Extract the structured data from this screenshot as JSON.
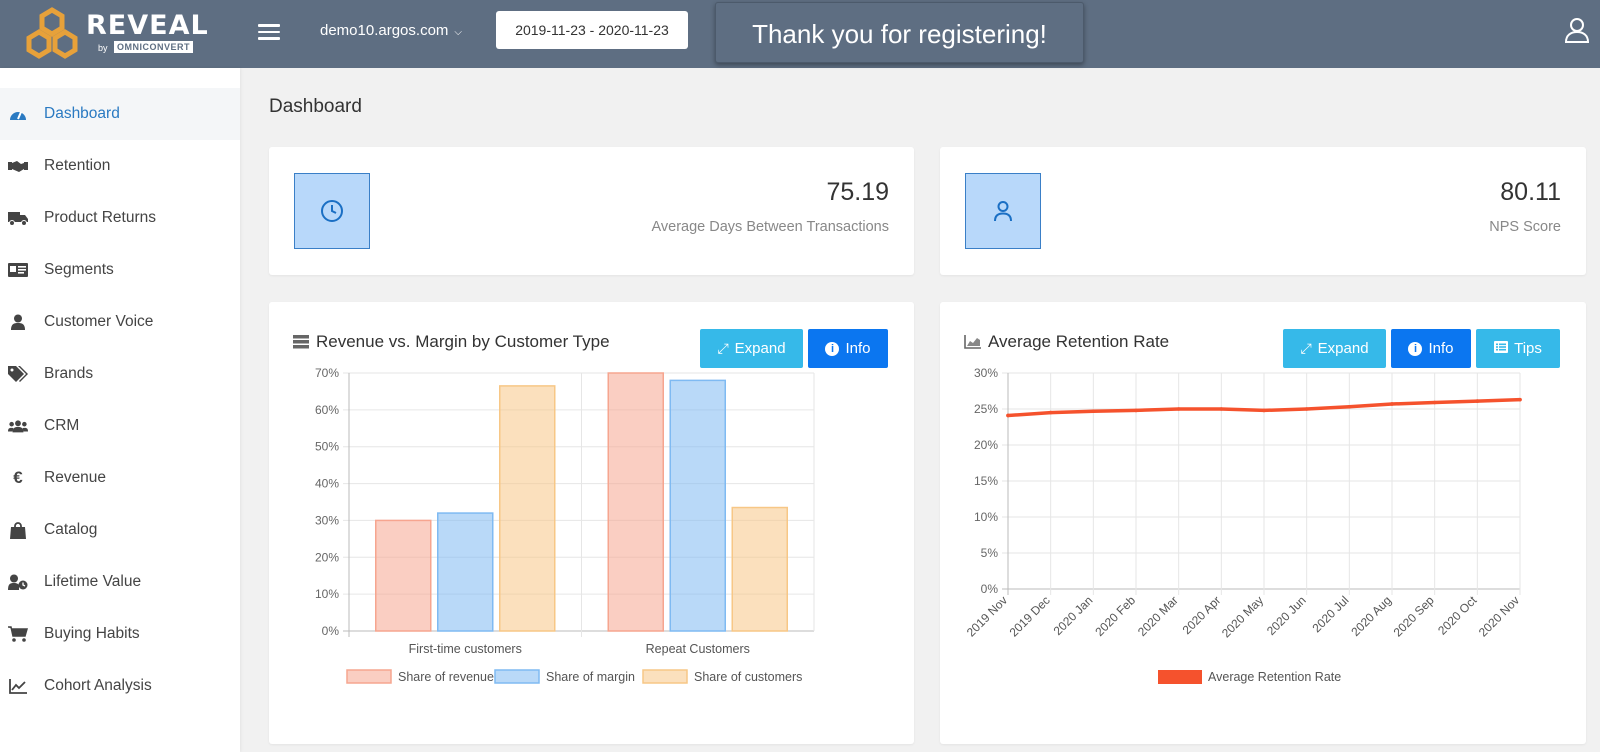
{
  "brand": {
    "name": "REVEAL",
    "by": "by",
    "company": "OMNICONVERT"
  },
  "header": {
    "domain": "demo10.argos.com",
    "date_range": "2019-11-23 - 2020-11-23",
    "toast": "Thank you for registering!"
  },
  "sidebar": {
    "items": [
      {
        "label": "Dashboard",
        "icon": "gauge-icon",
        "active": true
      },
      {
        "label": "Retention",
        "icon": "handshake-icon"
      },
      {
        "label": "Product Returns",
        "icon": "truck-icon"
      },
      {
        "label": "Segments",
        "icon": "id-card-icon"
      },
      {
        "label": "Customer Voice",
        "icon": "user-icon"
      },
      {
        "label": "Brands",
        "icon": "tags-icon"
      },
      {
        "label": "CRM",
        "icon": "users-icon"
      },
      {
        "label": "Revenue",
        "icon": "euro-icon"
      },
      {
        "label": "Catalog",
        "icon": "shopping-bag-icon"
      },
      {
        "label": "Lifetime Value",
        "icon": "user-clock-icon"
      },
      {
        "label": "Buying Habits",
        "icon": "cart-icon"
      },
      {
        "label": "Cohort Analysis",
        "icon": "line-chart-icon"
      }
    ]
  },
  "page": {
    "title": "Dashboard"
  },
  "kpis": [
    {
      "value": "75.19",
      "label": "Average Days Between Transactions",
      "icon": "clock-icon"
    },
    {
      "value": "80.11",
      "label": "NPS Score",
      "icon": "user-icon"
    }
  ],
  "buttons": {
    "expand": "Expand",
    "info": "Info",
    "tips": "Tips"
  },
  "colors": {
    "accent": "#2a7ac2",
    "header": "#5e6e82",
    "cyan_button": "#36b9e9",
    "blue_button": "#0b76f0"
  },
  "chart_data": [
    {
      "type": "bar",
      "title": "Revenue vs. Margin by Customer Type",
      "categories": [
        "First-time customers",
        "Repeat Customers"
      ],
      "series": [
        {
          "name": "Share of revenue",
          "values": [
            30,
            70
          ],
          "color": "#f6a58f"
        },
        {
          "name": "Share of margin",
          "values": [
            32,
            68
          ],
          "color": "#7fbaf2"
        },
        {
          "name": "Share of customers",
          "values": [
            66.5,
            33.5
          ],
          "color": "#f7c786"
        }
      ],
      "ylim": [
        0,
        70
      ],
      "yticks": [
        "0%",
        "10%",
        "20%",
        "30%",
        "40%",
        "50%",
        "60%",
        "70%"
      ],
      "grid": true,
      "legend": "bottom"
    },
    {
      "type": "line",
      "title": "Average Retention Rate",
      "x": [
        "2019 Nov",
        "2019 Dec",
        "2020 Jan",
        "2020 Feb",
        "2020 Mar",
        "2020 Apr",
        "2020 May",
        "2020 Jun",
        "2020 Jul",
        "2020 Aug",
        "2020 Sep",
        "2020 Oct",
        "2020 Nov"
      ],
      "series": [
        {
          "name": "Average Retention Rate",
          "values": [
            24.1,
            24.5,
            24.7,
            24.8,
            25.0,
            25.0,
            24.8,
            25.0,
            25.3,
            25.7,
            25.9,
            26.1,
            26.3
          ],
          "color": "#f5522d"
        }
      ],
      "ylim": [
        0,
        30
      ],
      "yticks": [
        "0%",
        "5%",
        "10%",
        "15%",
        "20%",
        "25%",
        "30%"
      ],
      "grid": true,
      "legend": "bottom"
    }
  ]
}
